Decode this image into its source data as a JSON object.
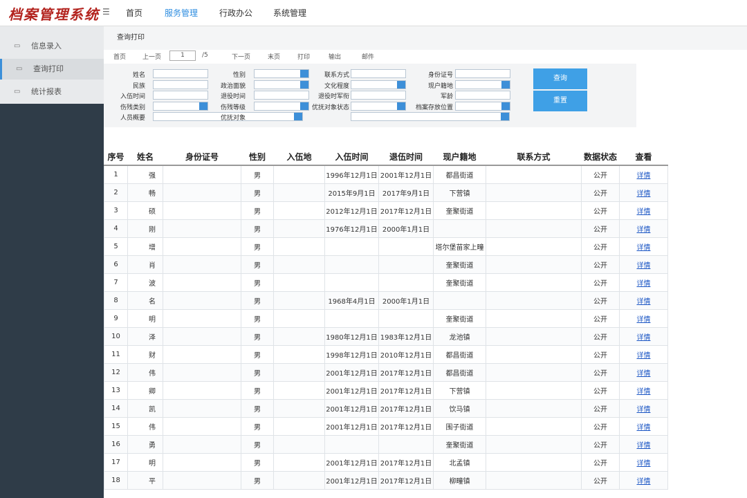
{
  "header": {
    "logo": "档案管理系统",
    "nav": [
      "首页",
      "服务管理",
      "行政办公",
      "系统管理"
    ]
  },
  "sidebar": [
    "信息录入",
    "查询打印",
    "统计报表"
  ],
  "breadcrumb": "查询打印",
  "toolbar": {
    "first": "首页",
    "prev": "上一页",
    "page": "1",
    "total": "/5",
    "next": "下一页",
    "last": "末页",
    "print": "打印",
    "export": "输出",
    "mail": "邮件"
  },
  "form": {
    "rows": [
      [
        "姓名",
        "性别",
        "联系方式",
        "身份证号"
      ],
      [
        "民族",
        "政治面貌",
        "文化程度",
        "现户籍地"
      ],
      [
        "入伍时间",
        "退役时间",
        "退役时军衔",
        "军龄"
      ],
      [
        "伤残类别",
        "伤残等级",
        "优抚对象状态",
        "档案存放位置"
      ],
      [
        "人员概要",
        "优抚对象"
      ]
    ]
  },
  "buttons": [
    "查询",
    "重置"
  ],
  "table": {
    "columns": [
      "序号",
      "姓名",
      "身份证号",
      "性别",
      "入伍地",
      "入伍时间",
      "退伍时间",
      "现户籍地",
      "联系方式",
      "数据状态",
      "查看"
    ],
    "rows": [
      [
        "1",
        "强",
        null,
        "男",
        null,
        "1996年12月1日",
        "2001年12月1日",
        "都昌街道",
        null,
        "公开",
        "详情"
      ],
      [
        "2",
        "畅",
        null,
        "男",
        null,
        "2015年9月1日",
        "2017年9月1日",
        "下营镇",
        null,
        "公开",
        "详情"
      ],
      [
        "3",
        "硕",
        null,
        "男",
        null,
        "2012年12月1日",
        "2017年12月1日",
        "奎聚街道",
        null,
        "公开",
        "详情"
      ],
      [
        "4",
        "刚",
        null,
        "男",
        null,
        "1976年12月1日",
        "2000年1月1日",
        null,
        null,
        "公开",
        "详情"
      ],
      [
        "5",
        "增",
        null,
        "男",
        null,
        null,
        null,
        "塔尔堡苗家上疃",
        null,
        "公开",
        "详情"
      ],
      [
        "6",
        "肖",
        null,
        "男",
        null,
        null,
        null,
        "奎聚街道",
        null,
        "公开",
        "详情"
      ],
      [
        "7",
        "波",
        null,
        "男",
        null,
        null,
        null,
        "奎聚街道",
        null,
        "公开",
        "详情"
      ],
      [
        "8",
        "名",
        null,
        "男",
        null,
        "1968年4月1日",
        "2000年1月1日",
        null,
        null,
        "公开",
        "详情"
      ],
      [
        "9",
        "明",
        null,
        "男",
        null,
        null,
        null,
        "奎聚街道",
        null,
        "公开",
        "详情"
      ],
      [
        "10",
        "泽",
        null,
        "男",
        null,
        "1980年12月1日",
        "1983年12月1日",
        "龙池镇",
        null,
        "公开",
        "详情"
      ],
      [
        "11",
        "财",
        null,
        "男",
        null,
        "1998年12月1日",
        "2010年12月1日",
        "都昌街道",
        null,
        "公开",
        "详情"
      ],
      [
        "12",
        "伟",
        null,
        "男",
        null,
        "2001年12月1日",
        "2017年12月1日",
        "都昌街道",
        null,
        "公开",
        "详情"
      ],
      [
        "13",
        "卿",
        null,
        "男",
        null,
        "2001年12月1日",
        "2017年12月1日",
        "下营镇",
        null,
        "公开",
        "详情"
      ],
      [
        "14",
        "凯",
        null,
        "男",
        null,
        "2001年12月1日",
        "2017年12月1日",
        "饮马镇",
        null,
        "公开",
        "详情"
      ],
      [
        "15",
        "伟",
        null,
        "男",
        null,
        "2001年12月1日",
        "2017年12月1日",
        "围子街道",
        null,
        "公开",
        "详情"
      ],
      [
        "16",
        "勇",
        null,
        "男",
        null,
        null,
        null,
        "奎聚街道",
        null,
        "公开",
        "详情"
      ],
      [
        "17",
        "明",
        null,
        "男",
        null,
        "2001年12月1日",
        "2017年12月1日",
        "北孟镇",
        null,
        "公开",
        "详情"
      ],
      [
        "18",
        "平",
        null,
        "男",
        null,
        "2001年12月1日",
        "2017年12月1日",
        "柳疃镇",
        null,
        "公开",
        "详情"
      ]
    ]
  }
}
